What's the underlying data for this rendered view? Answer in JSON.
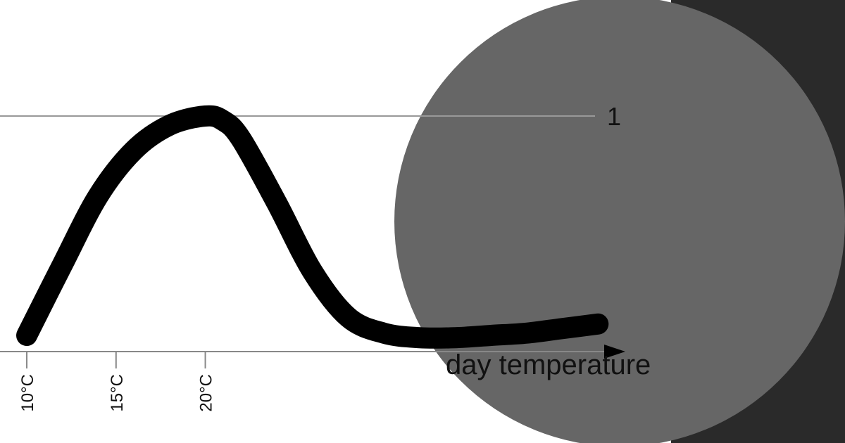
{
  "panel": {
    "background_color": "#2a2a2a",
    "circle_color": "#666666"
  },
  "chart_data": {
    "type": "line",
    "title": "",
    "xlabel": "day temperature",
    "ylabel": "",
    "x_unit": "°C",
    "xlim": [
      8.5,
      44
    ],
    "ylim": [
      0,
      1
    ],
    "reference_line": {
      "y": 1,
      "label": "1"
    },
    "grid": false,
    "legend": "none",
    "x_ticks": [
      {
        "value": 10,
        "label": "10°C"
      },
      {
        "value": 15,
        "label": "15°C"
      },
      {
        "value": 20,
        "label": "20°C"
      }
    ],
    "series": [
      {
        "color": "#000000",
        "points": [
          [
            10,
            0.04
          ],
          [
            12,
            0.35
          ],
          [
            14,
            0.65
          ],
          [
            16,
            0.85
          ],
          [
            18,
            0.96
          ],
          [
            20,
            1.0
          ],
          [
            21,
            0.98
          ],
          [
            22,
            0.9
          ],
          [
            24,
            0.62
          ],
          [
            26,
            0.32
          ],
          [
            28,
            0.12
          ],
          [
            30,
            0.05
          ],
          [
            32,
            0.03
          ],
          [
            34,
            0.03
          ],
          [
            36,
            0.04
          ],
          [
            38,
            0.05
          ],
          [
            40,
            0.07
          ],
          [
            42,
            0.09
          ]
        ]
      }
    ]
  }
}
